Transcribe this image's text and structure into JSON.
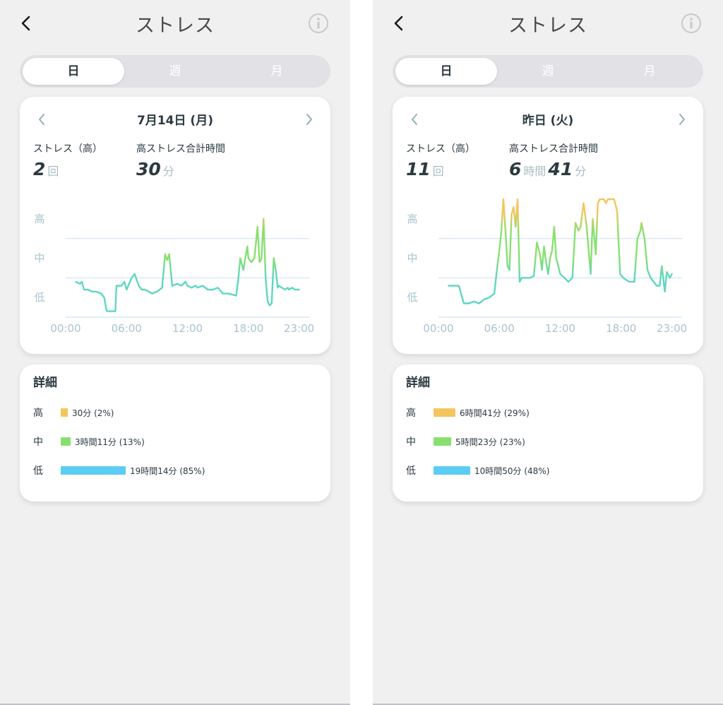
{
  "colors": {
    "high": "#f4c55e",
    "mid": "#89e070",
    "low": "#5bcdf3",
    "line_low": "#5fd6c4",
    "grid": "#cfe3f2",
    "axis_text": "#a9c4ce"
  },
  "screens": [
    {
      "title": "ストレス",
      "icons": {
        "back": "chevron-left-icon",
        "info": "info-circle-icon",
        "prev": "chevron-left-icon",
        "next": "chevron-right-icon"
      },
      "tabs": [
        "日",
        "週",
        "月"
      ],
      "active_tab": 0,
      "date": "7月14日 (月)",
      "stat1": {
        "label": "ストレス（高）",
        "value": "2",
        "unit": "回"
      },
      "stat2": {
        "label": "高ストレス合計時間",
        "value": "30",
        "unit": "分"
      },
      "detail": {
        "title": "詳細",
        "rows": [
          {
            "label": "高",
            "text": "30分 (2%)",
            "fraction": 0.02,
            "color": "#f4c55e"
          },
          {
            "label": "中",
            "text": "3時間11分 (13%)",
            "fraction": 0.13,
            "color": "#89e070"
          },
          {
            "label": "低",
            "text": "19時間14分 (85%)",
            "fraction": 0.85,
            "color": "#5bcdf3"
          }
        ]
      }
    },
    {
      "title": "ストレス",
      "icons": {
        "back": "chevron-left-icon",
        "info": "info-circle-icon",
        "prev": "chevron-left-icon",
        "next": "chevron-right-icon"
      },
      "tabs": [
        "日",
        "週",
        "月"
      ],
      "active_tab": 0,
      "date": "昨日 (火)",
      "stat1": {
        "label": "ストレス（高）",
        "value": "11",
        "unit": "回"
      },
      "stat2": {
        "label": "高ストレス合計時間",
        "value_h": "6",
        "unit_h": "時間",
        "value_m": "41",
        "unit_m": "分"
      },
      "detail": {
        "title": "詳細",
        "rows": [
          {
            "label": "高",
            "text": "6時間41分 (29%)",
            "fraction": 0.29,
            "color": "#f4c55e"
          },
          {
            "label": "中",
            "text": "5時間23分 (23%)",
            "fraction": 0.23,
            "color": "#89e070"
          },
          {
            "label": "低",
            "text": "10時間50分 (48%)",
            "fraction": 0.48,
            "color": "#5bcdf3"
          }
        ]
      }
    }
  ],
  "chart_data": [
    {
      "type": "line",
      "title": "",
      "y_levels": [
        "低",
        "中",
        "高"
      ],
      "y_range": [
        0,
        3
      ],
      "x_range": [
        0,
        24
      ],
      "x_ticks": [
        "00:00",
        "06:00",
        "12:00",
        "18:00",
        "23:00"
      ],
      "x_tick_values": [
        0,
        6,
        12,
        18,
        23
      ],
      "x": [
        1.0,
        1.4,
        1.6,
        1.8,
        2.2,
        2.6,
        3.0,
        3.5,
        3.8,
        4.0,
        4.1,
        4.9,
        5.0,
        5.2,
        5.5,
        5.8,
        6.0,
        6.5,
        6.8,
        7.0,
        7.2,
        7.5,
        7.8,
        8.2,
        8.5,
        9.0,
        9.5,
        9.8,
        10.0,
        10.2,
        10.5,
        11.0,
        11.4,
        11.8,
        12.0,
        12.4,
        12.8,
        13.0,
        13.5,
        14.0,
        14.5,
        15.0,
        15.5,
        16.0,
        16.8,
        17.0,
        17.2,
        17.5,
        17.9,
        18.0,
        18.3,
        18.6,
        18.9,
        19.1,
        19.3,
        19.5,
        19.7,
        19.9,
        20.1,
        20.3,
        20.5,
        20.7,
        20.9,
        21.0,
        21.3,
        21.6,
        21.9,
        22.0,
        22.3,
        22.6,
        22.9,
        23.0
      ],
      "y": [
        0.9,
        0.85,
        0.9,
        0.7,
        0.7,
        0.65,
        0.65,
        0.6,
        0.5,
        0.2,
        0.15,
        0.15,
        0.8,
        0.8,
        0.8,
        0.9,
        0.7,
        1.0,
        1.1,
        0.95,
        0.8,
        0.7,
        0.7,
        0.65,
        0.6,
        0.65,
        0.75,
        1.6,
        1.45,
        1.6,
        0.8,
        0.85,
        0.8,
        0.9,
        0.8,
        0.75,
        0.8,
        0.75,
        0.8,
        0.7,
        0.7,
        0.75,
        0.6,
        0.6,
        0.55,
        0.95,
        1.5,
        1.2,
        1.8,
        1.5,
        1.4,
        1.5,
        2.3,
        1.4,
        1.5,
        2.5,
        1.0,
        0.4,
        0.3,
        0.35,
        1.5,
        1.2,
        0.75,
        0.8,
        0.75,
        0.7,
        0.75,
        0.7,
        0.75,
        0.7,
        0.7,
        0.7
      ],
      "grid": true
    },
    {
      "type": "line",
      "title": "",
      "y_levels": [
        "低",
        "中",
        "高"
      ],
      "y_range": [
        0,
        3
      ],
      "x_range": [
        0,
        24
      ],
      "x_ticks": [
        "00:00",
        "06:00",
        "12:00",
        "18:00",
        "23:00"
      ],
      "x_tick_values": [
        0,
        6,
        12,
        18,
        23
      ],
      "x": [
        1.0,
        1.5,
        2.0,
        2.5,
        3.0,
        3.5,
        4.0,
        4.5,
        5.0,
        5.5,
        5.8,
        6.0,
        6.2,
        6.4,
        6.6,
        6.8,
        7.0,
        7.2,
        7.4,
        7.6,
        7.8,
        8.0,
        8.2,
        8.6,
        9.0,
        9.4,
        9.7,
        10.0,
        10.2,
        10.4,
        10.6,
        10.8,
        11.0,
        11.2,
        11.4,
        11.6,
        11.8,
        12.0,
        12.4,
        12.8,
        13.2,
        13.5,
        13.8,
        14.0,
        14.3,
        14.6,
        15.0,
        15.2,
        15.5,
        15.7,
        15.9,
        16.1,
        16.3,
        16.5,
        16.7,
        17.0,
        17.3,
        17.6,
        17.9,
        18.2,
        18.5,
        18.8,
        19.0,
        19.3,
        19.6,
        19.9,
        20.0,
        20.3,
        20.6,
        20.9,
        21.2,
        21.5,
        21.8,
        22.0,
        22.3,
        22.5,
        22.8,
        23.0
      ],
      "y": [
        0.8,
        0.8,
        0.8,
        0.35,
        0.35,
        0.4,
        0.35,
        0.45,
        0.5,
        0.6,
        1.3,
        1.7,
        2.2,
        3.0,
        2.2,
        1.3,
        1.2,
        2.6,
        2.8,
        2.3,
        3.0,
        0.9,
        1.0,
        1.0,
        1.0,
        1.05,
        1.9,
        1.6,
        1.2,
        1.8,
        1.4,
        1.1,
        1.5,
        1.7,
        2.3,
        1.5,
        1.3,
        1.1,
        1.0,
        0.9,
        1.0,
        2.4,
        2.2,
        2.3,
        2.9,
        2.3,
        1.1,
        2.5,
        1.6,
        2.9,
        3.0,
        3.0,
        3.0,
        2.9,
        3.0,
        3.0,
        3.0,
        2.7,
        1.1,
        1.0,
        0.95,
        0.9,
        0.9,
        0.9,
        2.0,
        2.2,
        2.4,
        2.0,
        1.2,
        1.0,
        0.9,
        0.8,
        0.8,
        1.3,
        0.65,
        1.15,
        1.0,
        1.1
      ],
      "grid": true
    }
  ]
}
